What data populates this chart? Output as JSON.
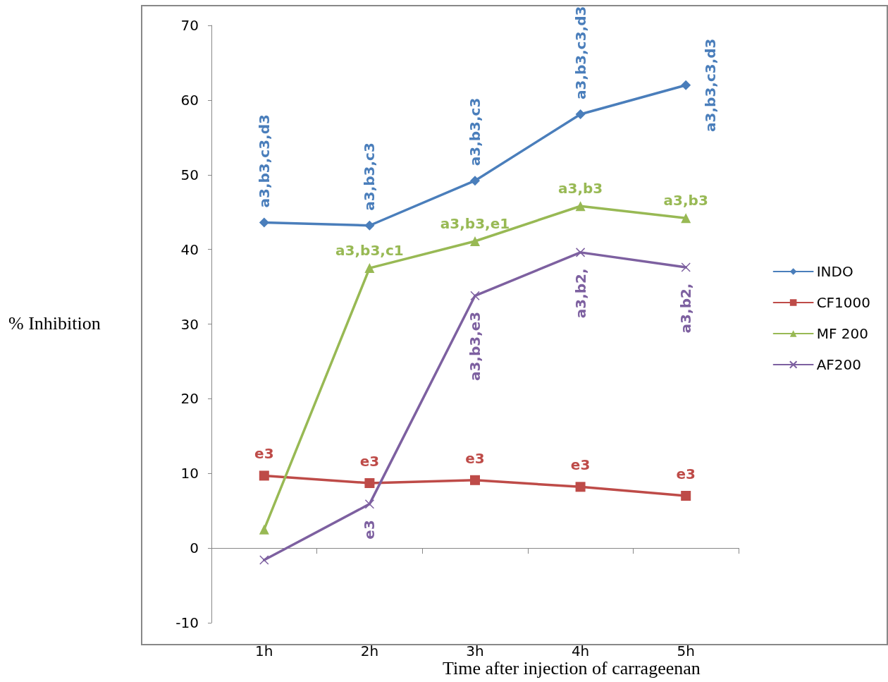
{
  "chart_data": {
    "type": "line",
    "xlabel": "Time after injection of carrageenan",
    "ylabel": "% Inhibition",
    "categories": [
      "1h",
      "2h",
      "3h",
      "4h",
      "5h"
    ],
    "series": [
      {
        "name": "INDO",
        "color": "#4a7ebb",
        "marker": "diamond",
        "values": [
          43.6,
          43.2,
          49.2,
          58.1,
          62.0
        ],
        "value_labels": [
          "a3,b3,c3,d3",
          "a3,b3,c3",
          "a3,b3,c3",
          "a3,b3,c3,d3",
          "a3,b3,c3,d3"
        ]
      },
      {
        "name": "CF1000",
        "color": "#be4b48",
        "marker": "square",
        "values": [
          9.7,
          8.7,
          9.1,
          8.2,
          7.0
        ],
        "value_labels": [
          "e3",
          "e3",
          "e3",
          "e3",
          "e3"
        ]
      },
      {
        "name": "MF 200",
        "color": "#98b954",
        "marker": "triangle",
        "values": [
          2.5,
          37.5,
          41.1,
          45.8,
          44.2
        ],
        "value_labels": [
          null,
          "a3,b3,c1",
          "a3,b3,e1",
          "a3,b3",
          "a3,b3"
        ]
      },
      {
        "name": "AF200",
        "color": "#7d60a0",
        "marker": "cross",
        "values": [
          -1.6,
          5.9,
          33.8,
          39.6,
          37.6
        ],
        "value_labels": [
          null,
          "e3",
          "a3,b3,e3",
          "a3,b2,",
          "a3,b2,"
        ]
      }
    ],
    "ylim": [
      -10,
      70
    ],
    "yticks": [
      -10,
      0,
      10,
      20,
      30,
      40,
      50,
      60,
      70
    ],
    "legend": "right"
  }
}
